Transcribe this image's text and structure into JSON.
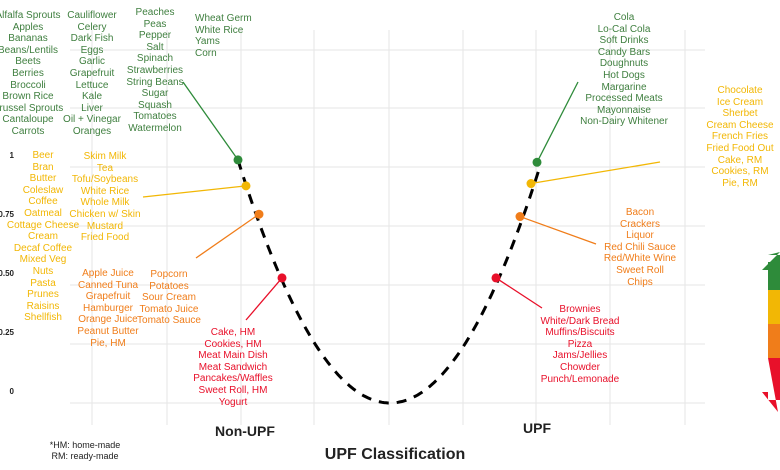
{
  "chart_data": {
    "type": "scatter",
    "xlabel": "UPF Classification",
    "categories": [
      "Non-UPF",
      "UPF"
    ],
    "y_ticks": [
      "0",
      "0.25",
      "0.50",
      "0.75",
      "1"
    ],
    "ylim": [
      0,
      1.1
    ],
    "grid": true,
    "curve": "dashed U-shaped line through points",
    "colors": {
      "green": "#2e8b3a",
      "yellow": "#f2b705",
      "orange": "#f07d1a",
      "red": "#e8102a"
    },
    "points": [
      {
        "category": "Non-UPF",
        "level": "green",
        "y": 1.03
      },
      {
        "category": "Non-UPF",
        "level": "yellow",
        "y": 0.92
      },
      {
        "category": "Non-UPF",
        "level": "orange",
        "y": 0.8
      },
      {
        "category": "Non-UPF",
        "level": "red",
        "y": 0.53
      },
      {
        "category": "UPF",
        "level": "green",
        "y": 1.02
      },
      {
        "category": "UPF",
        "level": "yellow",
        "y": 0.93
      },
      {
        "category": "UPF",
        "level": "orange",
        "y": 0.79
      },
      {
        "category": "UPF",
        "level": "red",
        "y": 0.53
      }
    ],
    "label_groups": [
      {
        "level": "green",
        "side": "Non-UPF",
        "items": [
          "Alfalfa Sprouts",
          "Apples",
          "Bananas",
          "Beans/Lentils",
          "Beets",
          "Berries",
          "Broccoli",
          "Brown Rice",
          "Brussel Sprouts",
          "Cantaloupe",
          "Carrots"
        ]
      },
      {
        "level": "green",
        "side": "Non-UPF",
        "items": [
          "Cauliflower",
          "Celery",
          "Dark Fish",
          "Eggs",
          "Garlic",
          "Grapefruit",
          "Lettuce",
          "Kale",
          "Liver",
          "Oil + Vinegar",
          "Oranges"
        ]
      },
      {
        "level": "green",
        "side": "Non-UPF",
        "items": [
          "Peaches",
          "Peas",
          "Pepper",
          "Salt",
          "Spinach",
          "Strawberries",
          "String Beans",
          "Sugar",
          "Squash",
          "Tomatoes",
          "Watermelon"
        ]
      },
      {
        "level": "green",
        "side": "Non-UPF",
        "items": [
          "Wheat Germ",
          "White Rice",
          "Yams",
          "Corn"
        ]
      },
      {
        "level": "yellow",
        "side": "Non-UPF",
        "items": [
          "Beer",
          "Bran",
          "Butter",
          "Coleslaw",
          "Coffee",
          "Oatmeal",
          "Cottage Cheese",
          "Cream",
          "Decaf Coffee",
          "Mixed Veg",
          "Nuts",
          "Pasta",
          "Prunes",
          "Raisins",
          "Shellfish"
        ]
      },
      {
        "level": "yellow",
        "side": "Non-UPF",
        "items": [
          "Skim Milk",
          "Tea",
          "Tofu/Soybeans",
          "White Rice",
          "Whole Milk",
          "Chicken w/ Skin",
          "Mustard",
          "Fried Food"
        ]
      },
      {
        "level": "orange",
        "side": "Non-UPF",
        "items": [
          "Apple Juice",
          "Canned Tuna",
          "Grapefruit",
          "Hamburger",
          "Orange Juice",
          "Peanut Butter",
          "Pie, HM"
        ]
      },
      {
        "level": "orange",
        "side": "Non-UPF",
        "items": [
          "Popcorn",
          "Potatoes",
          "Sour Cream",
          "Tomato Juice",
          "Tomato Sauce"
        ]
      },
      {
        "level": "red",
        "side": "Non-UPF",
        "items": [
          "Cake, HM",
          "Cookies, HM",
          "Meat Main Dish",
          "Meat Sandwich",
          "Pancakes/Waffles",
          "Sweet Roll, HM",
          "Yogurt"
        ]
      },
      {
        "level": "green",
        "side": "UPF",
        "items": [
          "Cola",
          "Lo-Cal Cola",
          "Soft Drinks",
          "Candy Bars",
          "Doughnuts",
          "Hot Dogs",
          "Margarine",
          "Processed Meats",
          "Mayonnaise",
          "Non-Dairy Whitener"
        ]
      },
      {
        "level": "yellow",
        "side": "UPF",
        "items": [
          "Chocolate",
          "Ice Cream",
          "Sherbet",
          "Cream Cheese",
          "French Fries",
          "Fried Food Out",
          "Cake, RM",
          "Cookies, RM",
          "Pie, RM"
        ]
      },
      {
        "level": "orange",
        "side": "UPF",
        "items": [
          "Bacon",
          "Crackers",
          "Liquor",
          "Red Chili Sauce",
          "Red/White Wine",
          "Sweet Roll",
          "Chips"
        ]
      },
      {
        "level": "red",
        "side": "UPF",
        "items": [
          "Brownies",
          "White/Dark Bread",
          "Muffins/Biscuits",
          "Pizza",
          "Jams/Jellies",
          "Chowder",
          "Punch/Lemonade"
        ]
      }
    ],
    "footnote": [
      "*HM: home-made",
      "RM: ready-made"
    ],
    "scale_arrow": [
      "green",
      "yellow",
      "orange",
      "red"
    ]
  }
}
